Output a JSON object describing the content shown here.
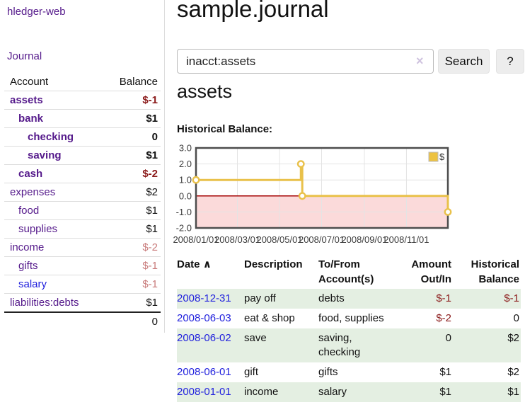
{
  "app": {
    "brand": "hledger-web",
    "nav_journal": "Journal"
  },
  "sidebar": {
    "header": {
      "account": "Account",
      "balance": "Balance"
    },
    "accounts": [
      {
        "name": "assets",
        "indent": 1,
        "bold": true,
        "link_color": "purple",
        "balance": "$-1",
        "balance_style": "negative-strong"
      },
      {
        "name": "bank",
        "indent": 2,
        "bold": true,
        "link_color": "purple",
        "balance": "$1",
        "balance_style": "normal-strong"
      },
      {
        "name": "checking",
        "indent": 3,
        "bold": true,
        "link_color": "purple",
        "balance": "0",
        "balance_style": "normal-strong"
      },
      {
        "name": "saving",
        "indent": 3,
        "bold": true,
        "link_color": "purple",
        "balance": "$1",
        "balance_style": "normal-strong"
      },
      {
        "name": "cash",
        "indent": 2,
        "bold": true,
        "link_color": "purple",
        "balance": "$-2",
        "balance_style": "negative-strong"
      },
      {
        "name": "expenses",
        "indent": 1,
        "bold": false,
        "link_color": "purple",
        "balance": "$2",
        "balance_style": "normal"
      },
      {
        "name": "food",
        "indent": 2,
        "bold": false,
        "link_color": "purple",
        "balance": "$1",
        "balance_style": "normal"
      },
      {
        "name": "supplies",
        "indent": 2,
        "bold": false,
        "link_color": "purple",
        "balance": "$1",
        "balance_style": "normal"
      },
      {
        "name": "income",
        "indent": 1,
        "bold": false,
        "link_color": "purple",
        "balance": "$-2",
        "balance_style": "negative-soft"
      },
      {
        "name": "gifts",
        "indent": 2,
        "bold": false,
        "link_color": "purple",
        "balance": "$-1",
        "balance_style": "negative-soft"
      },
      {
        "name": "salary",
        "indent": 2,
        "bold": false,
        "link_color": "blue",
        "balance": "$-1",
        "balance_style": "negative-soft"
      },
      {
        "name": "liabilities:debts",
        "indent": 1,
        "bold": false,
        "link_color": "purple",
        "balance": "$1",
        "balance_style": "normal"
      }
    ],
    "total": "0"
  },
  "header": {
    "title": "sample.journal"
  },
  "search": {
    "value": "inacct:assets",
    "clear_icon": "×",
    "button_label": "Search",
    "help_label": "?"
  },
  "register": {
    "heading": "assets",
    "chart_label": "Historical Balance:"
  },
  "chart_data": {
    "type": "line",
    "style": "step-after",
    "title": "Historical Balance",
    "series": [
      {
        "name": "$",
        "points": [
          {
            "date": "2008-01-01",
            "day": 0,
            "value": 1
          },
          {
            "date": "2008-06-01",
            "day": 152,
            "value": 2
          },
          {
            "date": "2008-06-03",
            "day": 154,
            "value": 0
          },
          {
            "date": "2008-12-31",
            "day": 365,
            "value": -1
          }
        ]
      }
    ],
    "x_domain_days": [
      0,
      365
    ],
    "ylim": [
      -2,
      3
    ],
    "yticks": [
      {
        "label": "3.0",
        "value": 3
      },
      {
        "label": "2.0",
        "value": 2
      },
      {
        "label": "1.0",
        "value": 1
      },
      {
        "label": "0.0",
        "value": 0
      },
      {
        "label": "-1.0",
        "value": -1
      },
      {
        "label": "-2.0",
        "value": -2
      }
    ],
    "xticks": [
      {
        "label": "2008/01/01",
        "day": 0
      },
      {
        "label": "2008/03/01",
        "day": 60
      },
      {
        "label": "2008/05/01",
        "day": 121
      },
      {
        "label": "2008/07/01",
        "day": 182
      },
      {
        "label": "2008/09/01",
        "day": 244
      },
      {
        "label": "2008/11/01",
        "day": 305
      }
    ],
    "legend": {
      "label": "$",
      "position": "top-right"
    },
    "negative_region_shaded": true,
    "grid": true
  },
  "transactions": {
    "columns": {
      "date": "Date",
      "description": "Description",
      "accounts": "To/From Account(s)",
      "amount": "Amount Out/In",
      "balance": "Historical Balance"
    },
    "sort_indicator": "∧",
    "rows": [
      {
        "date": "2008-12-31",
        "description": "pay off",
        "accounts": "debts",
        "amount": "$-1",
        "balance": "$-1"
      },
      {
        "date": "2008-06-03",
        "description": "eat & shop",
        "accounts": "food, supplies",
        "amount": "$-2",
        "balance": "0"
      },
      {
        "date": "2008-06-02",
        "description": "save",
        "accounts": "saving, checking",
        "amount": "0",
        "balance": "$2"
      },
      {
        "date": "2008-06-01",
        "description": "gift",
        "accounts": "gifts",
        "amount": "$1",
        "balance": "$2"
      },
      {
        "date": "2008-01-01",
        "description": "income",
        "accounts": "salary",
        "amount": "$1",
        "balance": "$1"
      }
    ]
  },
  "colors": {
    "link_purple": "#551a8b",
    "link_blue": "#2222dd",
    "negative_strong": "#8b1a1a",
    "negative_soft": "#c97c7c",
    "row_stripe_green": "#e4efe2",
    "series_gold": "#e9c14a",
    "legend_swatch": "#edc240",
    "negative_region": "#fbdada",
    "zero_line": "#a40000",
    "grid": "#e4e4e4",
    "chart_border": "#4d4d4d",
    "tick_text": "#3c3c3c"
  }
}
